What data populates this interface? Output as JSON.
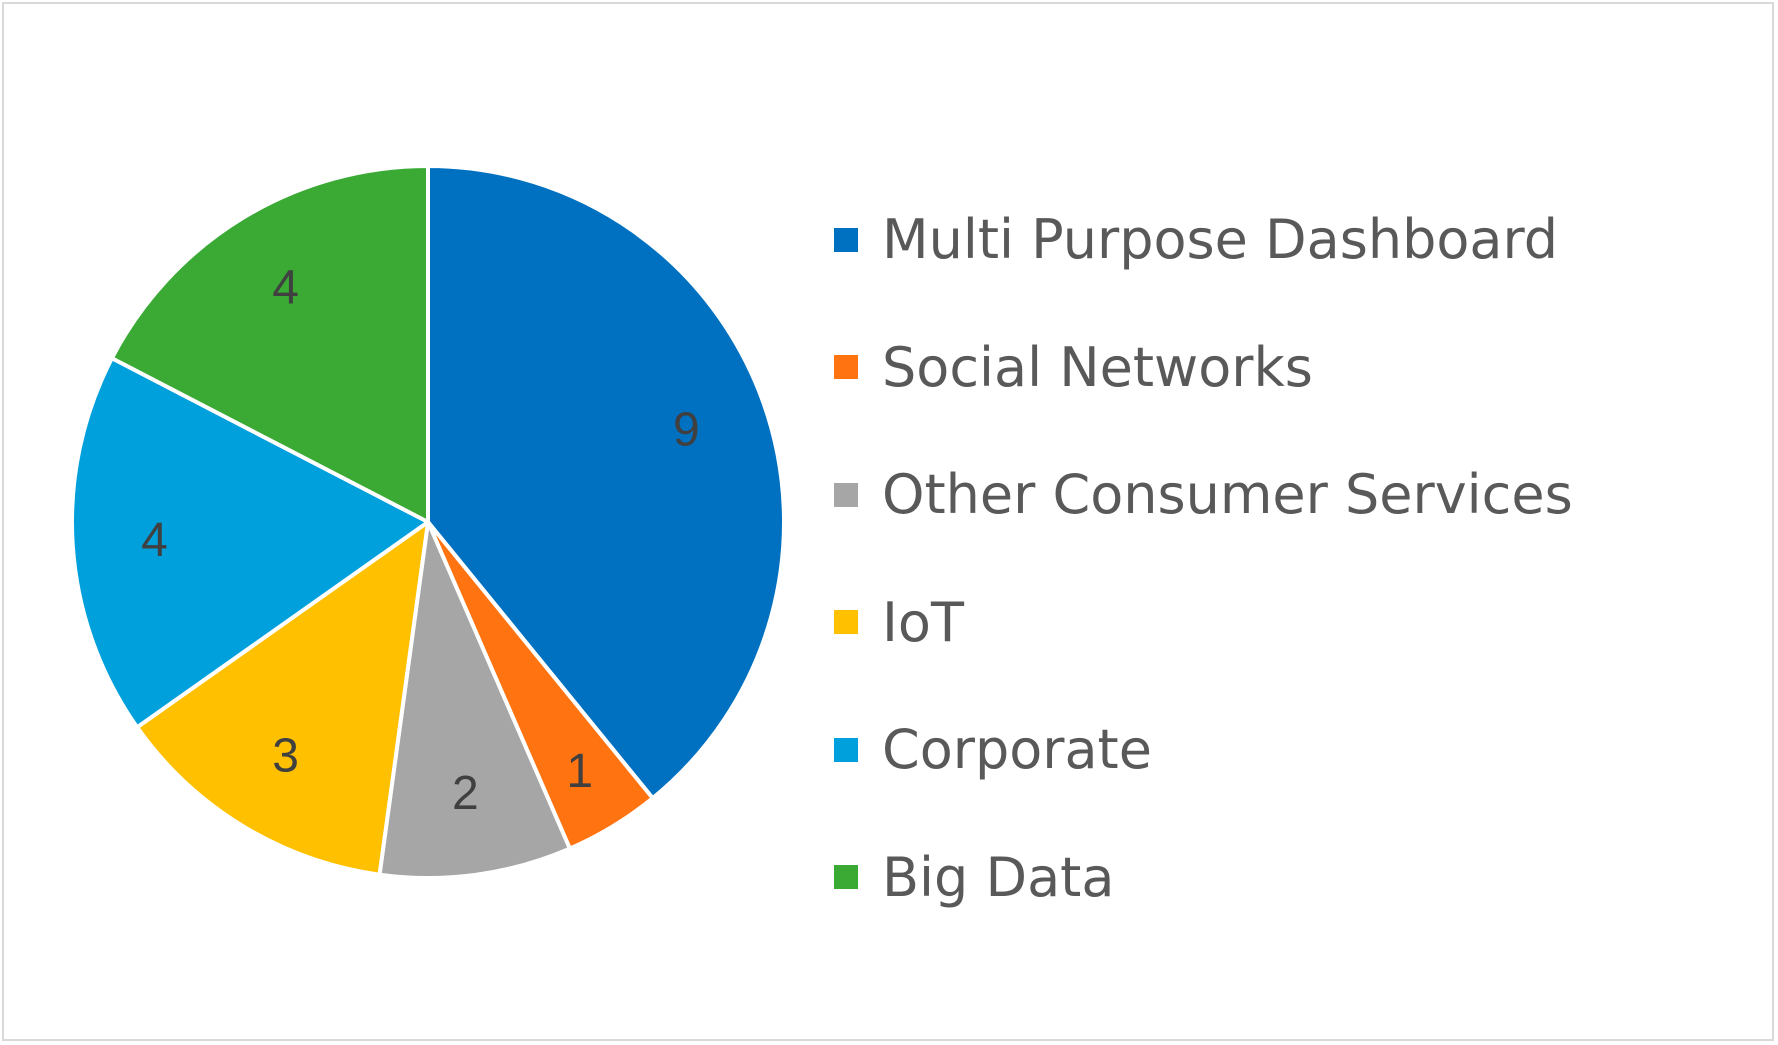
{
  "chart_data": {
    "type": "pie",
    "categories": [
      "Multi Purpose Dashboard",
      "Social Networks",
      "Other Consumer Services",
      "IoT",
      "Corporate",
      "Big Data"
    ],
    "values": [
      9,
      1,
      2,
      3,
      4,
      4
    ],
    "data_labels": [
      "9",
      "1",
      "2",
      "3",
      "4",
      "4"
    ],
    "colors": [
      "#0070c0",
      "#ff7310",
      "#a6a6a6",
      "#ffc000",
      "#00a0dc",
      "#3aaa35"
    ],
    "legend_position": "right",
    "title": ""
  }
}
